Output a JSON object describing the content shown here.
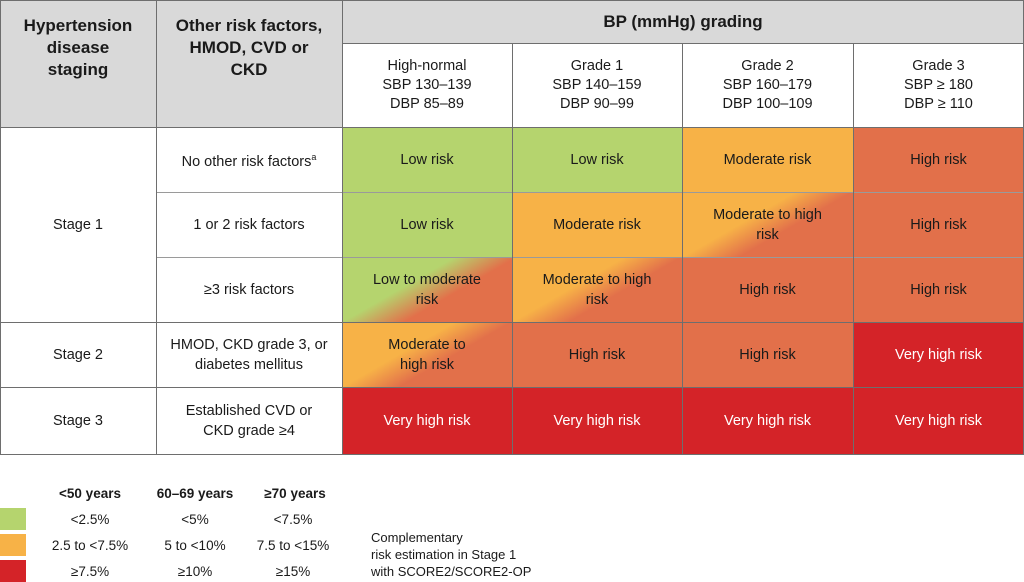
{
  "header": {
    "col1": "Hypertension disease staging",
    "col2": "Other risk factors, HMOD, CVD or CKD",
    "bp_title": "BP (mmHg) grading"
  },
  "grades": [
    {
      "name": "High-normal",
      "sbp": "SBP 130–139",
      "dbp": "DBP 85–89"
    },
    {
      "name": "Grade 1",
      "sbp": "SBP 140–159",
      "dbp": "DBP 90–99"
    },
    {
      "name": "Grade 2",
      "sbp": "SBP 160–179",
      "dbp": "DBP 100–109"
    },
    {
      "name": "Grade 3",
      "sbp": "SBP ≥ 180",
      "dbp": "DBP ≥ 110"
    }
  ],
  "stages": {
    "stage1": "Stage 1",
    "stage2": "Stage 2",
    "stage3": "Stage 3"
  },
  "rows": [
    {
      "factor": "No other risk factors",
      "superscript": "a",
      "cells": [
        "Low risk",
        "Low risk",
        "Moderate risk",
        "High risk"
      ]
    },
    {
      "factor": "1 or 2 risk factors",
      "cells": [
        "Low risk",
        "Moderate risk",
        "Moderate to high risk",
        "High risk"
      ]
    },
    {
      "factor": "≥3 risk factors",
      "cells": [
        "Low to moderate risk",
        "Moderate to high risk",
        "High risk",
        "High risk"
      ]
    },
    {
      "factor": "HMOD, CKD grade 3, or diabetes mellitus",
      "cells": [
        "Moderate to high risk",
        "High risk",
        "High risk",
        "Very high risk"
      ]
    },
    {
      "factor": "Established CVD or CKD grade ≥4",
      "cells": [
        "Very high risk",
        "Very high risk",
        "Very high risk",
        "Very high risk"
      ]
    }
  ],
  "colors": {
    "green": "#b5d46e",
    "amber": "#f7b247",
    "orange": "#e2704a",
    "red": "#d42328",
    "header_gray": "#d9d9d9"
  },
  "legend": {
    "headers": [
      "<50 years",
      "60–69 years",
      "≥70 years"
    ],
    "rows": [
      {
        "color": "green",
        "values": [
          "<2.5%",
          "<5%",
          "<7.5%"
        ]
      },
      {
        "color": "amber",
        "values": [
          "2.5 to <7.5%",
          "5 to <10%",
          "7.5 to <15%"
        ]
      },
      {
        "color": "red",
        "values": [
          "≥7.5%",
          "≥10%",
          "≥15%"
        ]
      }
    ],
    "note_lines": [
      "Complementary",
      "risk estimation in Stage 1",
      "with SCORE2/SCORE2-OP"
    ]
  }
}
